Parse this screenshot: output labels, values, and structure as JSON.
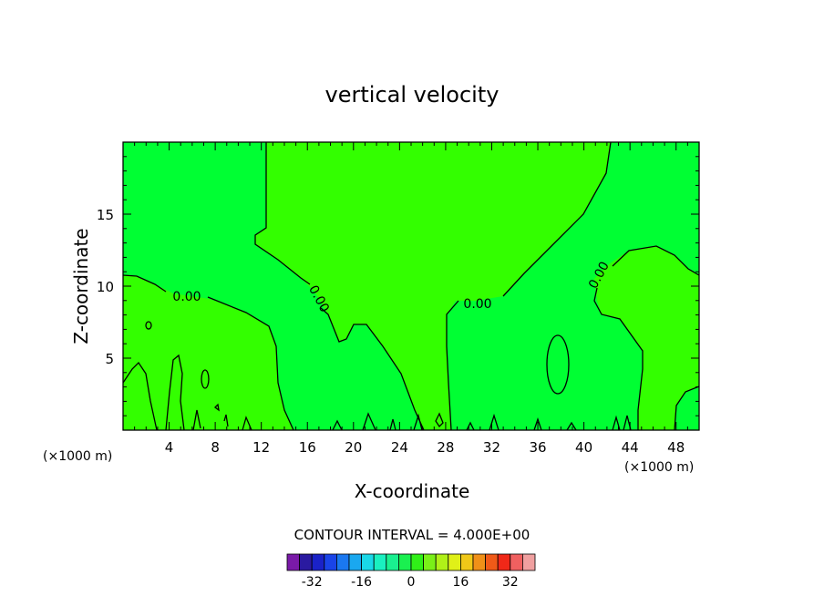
{
  "chart_data": {
    "type": "contour",
    "title": "vertical velocity",
    "xlabel": "X-coordinate",
    "ylabel": "Z-coordinate",
    "x_unit_left": "(×1000 m)",
    "x_unit_right": "(×1000 m)",
    "xlim": [
      0,
      50
    ],
    "ylim": [
      0,
      20
    ],
    "x_ticks": [
      "4",
      "8",
      "12",
      "16",
      "20",
      "24",
      "28",
      "32",
      "36",
      "40",
      "44",
      "48"
    ],
    "y_ticks": [
      "5",
      "10",
      "15"
    ],
    "contour_interval_text": "CONTOUR INTERVAL = 4.000E+00",
    "contour_label": "0.00",
    "colorbar": {
      "labels": [
        "-32",
        "-16",
        "0",
        "16",
        "32"
      ],
      "colors": [
        "#7a1aa8",
        "#2a1aa0",
        "#1a22c8",
        "#1a44e8",
        "#1a78f0",
        "#1aa8f0",
        "#1ad8e8",
        "#1af0c0",
        "#1af090",
        "#1af050",
        "#30f018",
        "#7af018",
        "#b0f018",
        "#e0f018",
        "#f0c818",
        "#f09018",
        "#f05a18",
        "#f02818",
        "#f06060",
        "#f0a0a0"
      ]
    },
    "fields": {
      "positive_fill": "#00ff33",
      "near_zero_fill": "#33ff00"
    }
  }
}
